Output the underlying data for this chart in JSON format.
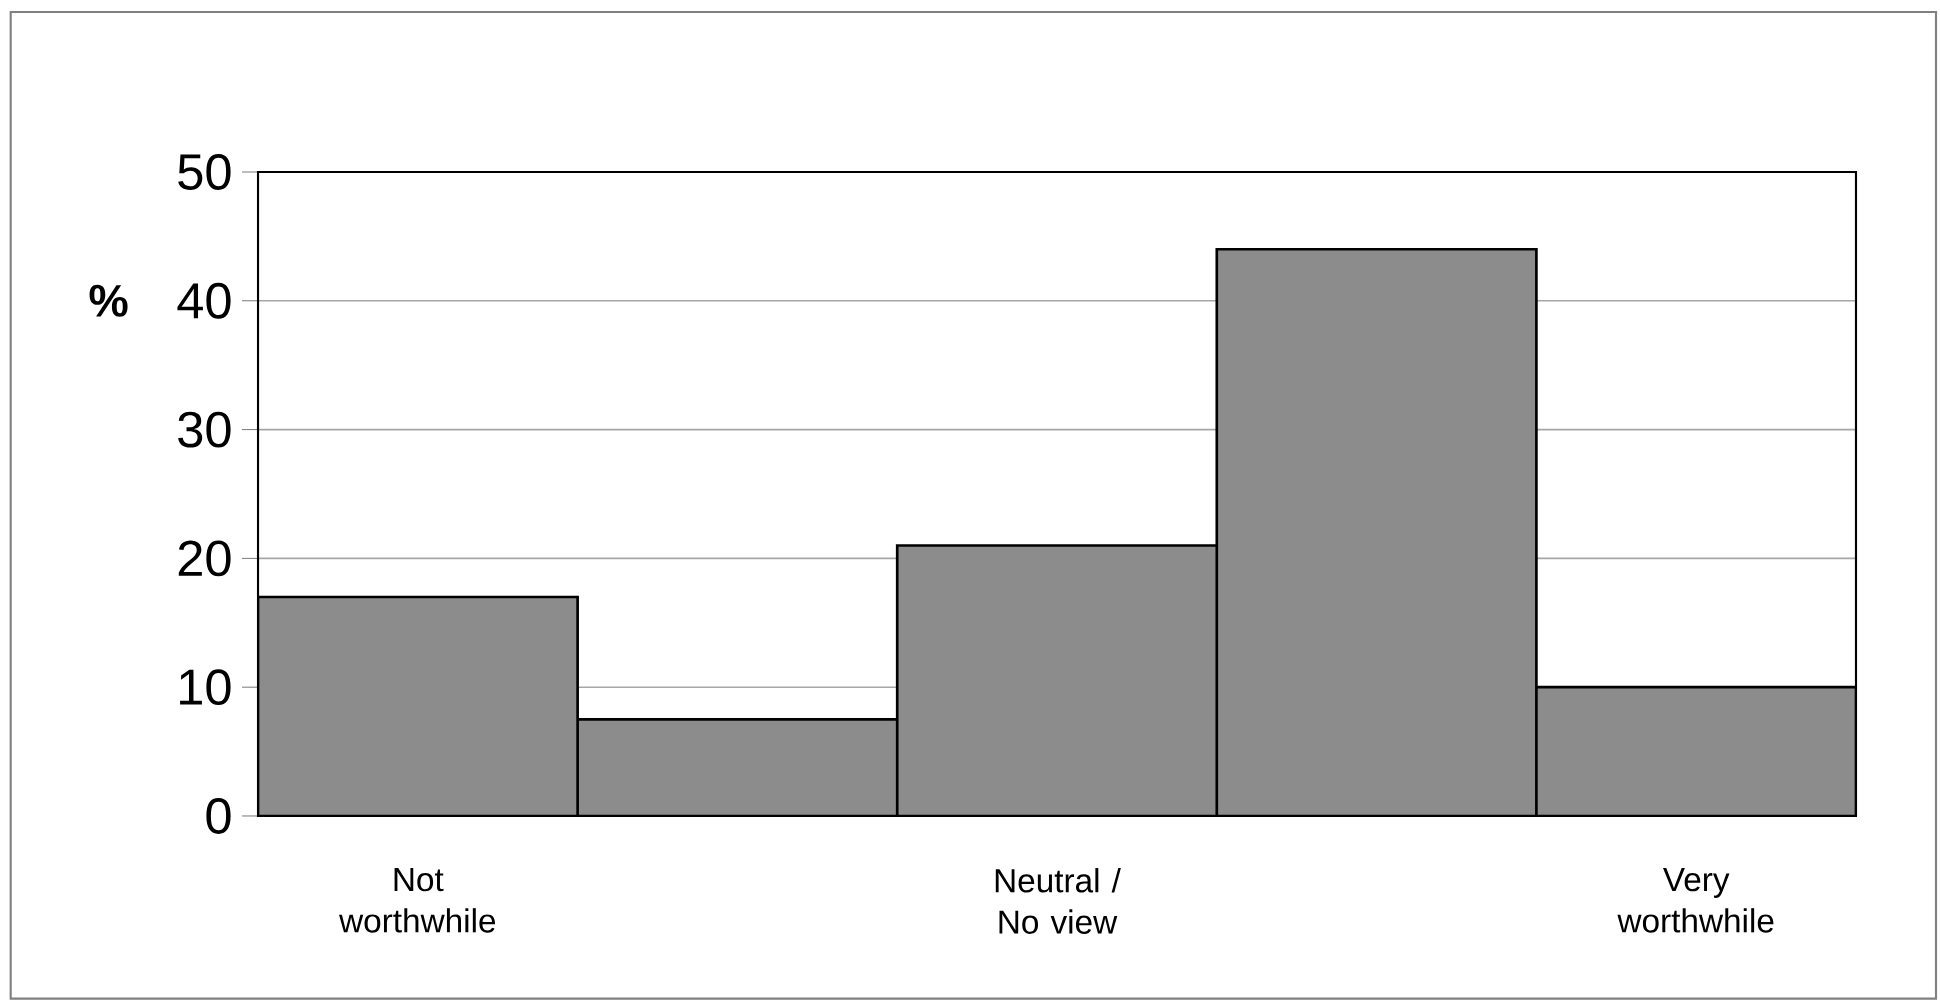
{
  "chart_data": {
    "type": "bar",
    "ylabel": "%",
    "categories": [
      "Not worthwhile",
      null,
      "Neutral / No view",
      null,
      "Very worthwhile"
    ],
    "values": [
      17,
      7.5,
      21,
      44,
      10
    ],
    "color": "#8c8c8c",
    "ylim": [
      0,
      50
    ],
    "yticks": [
      0,
      10,
      20,
      30,
      40,
      50
    ],
    "grid": "y"
  }
}
